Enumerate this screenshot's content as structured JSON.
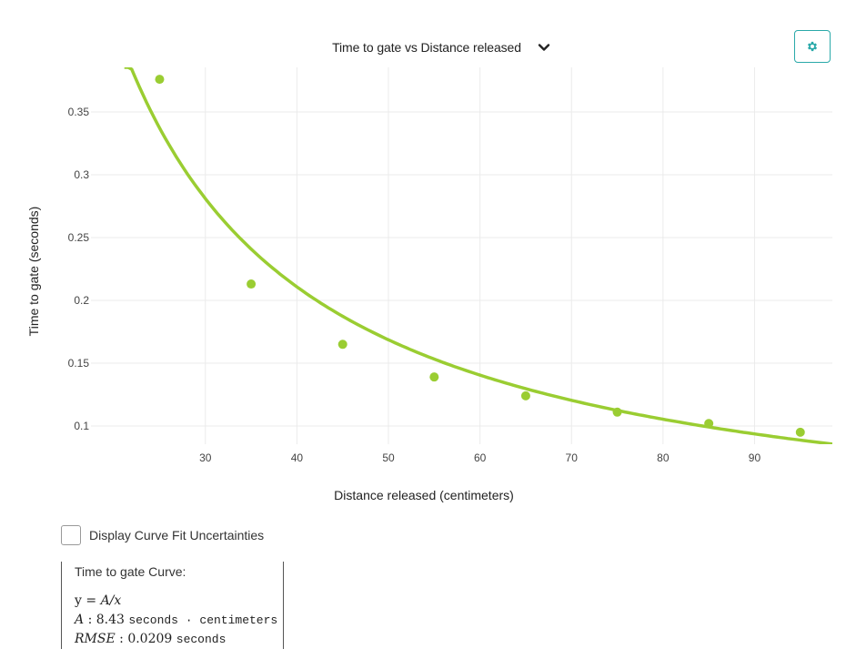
{
  "header": {
    "chart_selector_label": "Time to gate vs Distance released"
  },
  "options": {
    "display_uncertainties_label": "Display Curve Fit Uncertainties",
    "display_uncertainties_checked": false
  },
  "curve_fit": {
    "title": "Time to gate Curve:",
    "equation_y": "y",
    "equation_rhs": "A/x",
    "param_name": "A",
    "param_value": "8.43",
    "param_units": "seconds · centimeters",
    "rmse_name": "RMSE",
    "rmse_value": "0.0209",
    "rmse_units": "seconds"
  },
  "colors": {
    "series": "#9ACD32",
    "accent": "#2AA9A9",
    "grid": "#EBEBEB"
  },
  "icons": {
    "settings": "gear-icon",
    "dropdown": "chevron-down-icon"
  },
  "chart_data": {
    "type": "scatter",
    "title": "Time to gate vs Distance released",
    "xlabel": "Distance released (centimeters)",
    "ylabel": "Time to gate (seconds)",
    "xlim": [
      17.5,
      98.5
    ],
    "ylim": [
      0.0855,
      0.3855
    ],
    "x_ticks": [
      30,
      40,
      50,
      60,
      70,
      80,
      90
    ],
    "y_ticks": [
      0.1,
      0.15,
      0.2,
      0.25,
      0.3,
      0.35
    ],
    "x_tick_labels": [
      "30",
      "40",
      "50",
      "60",
      "70",
      "80",
      "90"
    ],
    "y_tick_labels": [
      "0.1",
      "0.15",
      "0.2",
      "0.25",
      "0.3",
      "0.35"
    ],
    "grid": true,
    "series": [
      {
        "values": [
          {
            "x": 25,
            "y": 0.376
          },
          {
            "x": 35,
            "y": 0.213
          },
          {
            "x": 45,
            "y": 0.165
          },
          {
            "x": 55,
            "y": 0.139
          },
          {
            "x": 65,
            "y": 0.124
          },
          {
            "x": 75,
            "y": 0.111
          },
          {
            "x": 85,
            "y": 0.102
          },
          {
            "x": 95,
            "y": 0.095
          }
        ]
      }
    ],
    "fit": {
      "model": "A/x",
      "A": 8.43
    }
  }
}
